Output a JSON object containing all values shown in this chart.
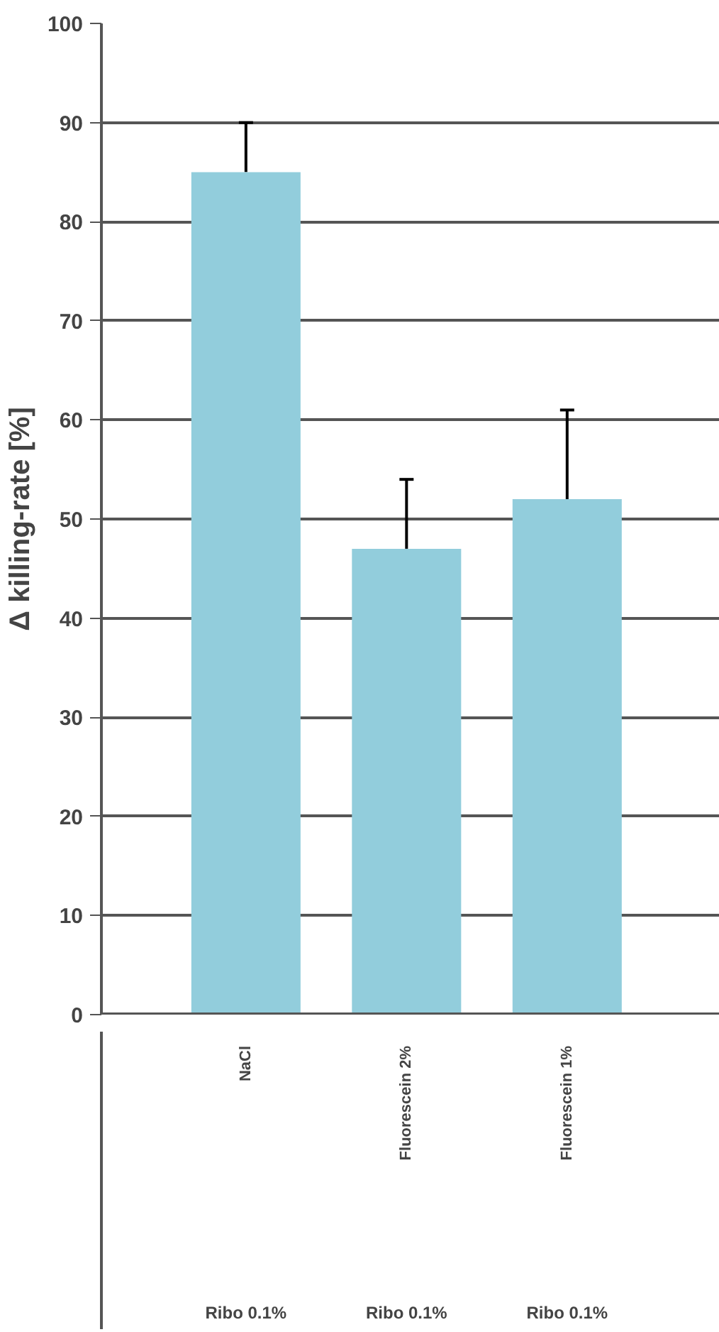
{
  "chart_data": {
    "type": "bar",
    "ylabel": "Δ killing-rate [%]",
    "categories": [
      "NaCl\nRibo 0.1%",
      "Fluorescein 2%\nRibo 0.1%",
      "Fluorescein 1%\nRibo 0.1%"
    ],
    "values": [
      85,
      47,
      52
    ],
    "color": "#92cddc",
    "errors": [
      [
        85,
        90
      ],
      [
        47,
        54
      ],
      [
        52,
        61
      ]
    ],
    "ylim": [
      0,
      100
    ],
    "yticks": [
      0,
      10,
      20,
      30,
      40,
      50,
      60,
      70,
      80,
      90,
      100
    ],
    "grid": "y"
  }
}
